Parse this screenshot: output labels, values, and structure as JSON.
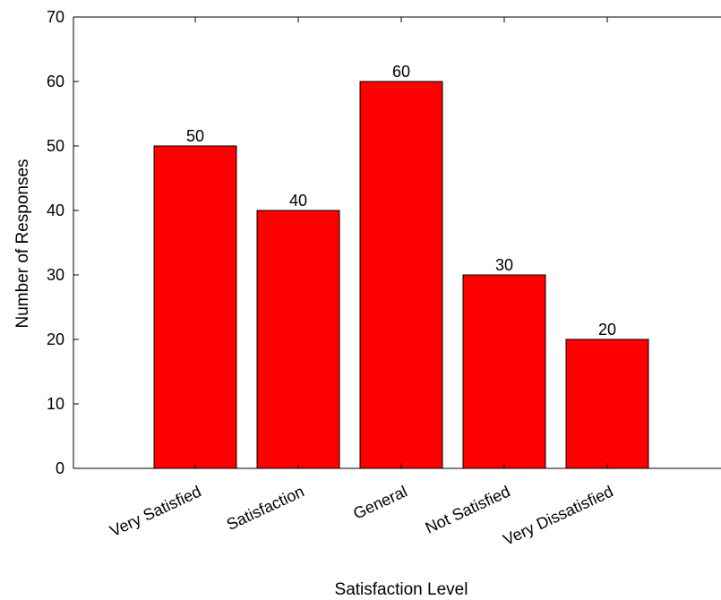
{
  "chart_data": {
    "type": "bar",
    "categories": [
      "Very Satisfied",
      "Satisfaction",
      "General",
      "Not Satisfied",
      "Very Dissatisfied"
    ],
    "values": [
      50,
      40,
      60,
      30,
      20
    ],
    "data_labels": [
      "50",
      "40",
      "60",
      "30",
      "20"
    ],
    "xlabel": "Satisfaction Level",
    "ylabel": "Number of Responses",
    "ylim": [
      0,
      70
    ],
    "yticks": [
      0,
      10,
      20,
      30,
      40,
      50,
      60,
      70
    ],
    "ytick_labels": [
      "0",
      "10",
      "20",
      "30",
      "40",
      "50",
      "60",
      "70"
    ],
    "grid": false,
    "bar_color": "#ff0000",
    "bar_edge_color": "#000000",
    "x_tick_rotation": "diagonal"
  }
}
